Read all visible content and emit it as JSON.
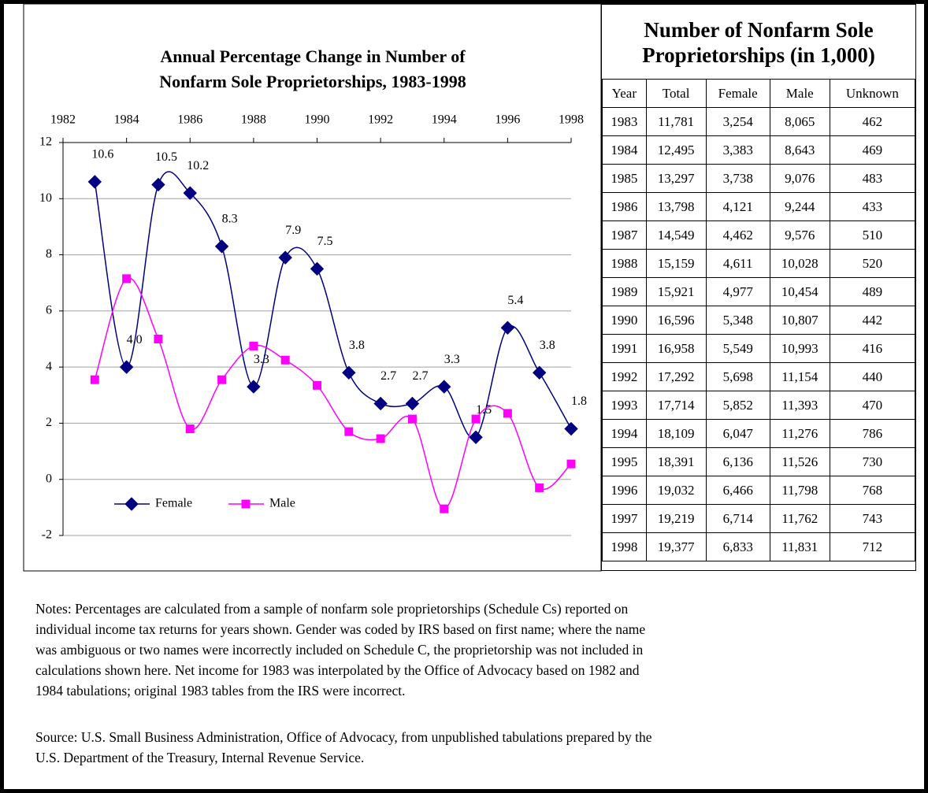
{
  "chart_data": {
    "type": "line",
    "title": [
      "Annual Percentage Change in Number of",
      "Nonfarm Sole Proprietorships, 1983-1998"
    ],
    "x": [
      1983,
      1984,
      1985,
      1986,
      1987,
      1988,
      1989,
      1990,
      1991,
      1992,
      1993,
      1994,
      1995,
      1996,
      1997,
      1998
    ],
    "series": [
      {
        "name": "Female",
        "color": "#000080",
        "marker": "diamond",
        "values": [
          10.6,
          4.0,
          10.5,
          10.2,
          8.3,
          3.3,
          7.9,
          7.5,
          3.8,
          2.7,
          2.7,
          3.3,
          1.5,
          5.4,
          3.8,
          1.8
        ],
        "value_labels": [
          "10.6",
          "4.0",
          "10.5",
          "10.2",
          "8.3",
          "3.3",
          "7.9",
          "7.5",
          "3.8",
          "2.7",
          "2.7",
          "3.3",
          "1.5",
          "5.4",
          "3.8",
          "1.8"
        ]
      },
      {
        "name": "Male",
        "color": "#ff00ff",
        "marker": "square",
        "values": [
          3.55,
          7.15,
          5.0,
          1.8,
          3.55,
          4.75,
          4.25,
          3.35,
          1.7,
          1.45,
          2.15,
          -1.05,
          2.15,
          2.35,
          -0.3,
          0.55
        ]
      }
    ],
    "xlim": [
      1982,
      1998
    ],
    "xticks": [
      1982,
      1984,
      1986,
      1988,
      1990,
      1992,
      1994,
      1996,
      1998
    ],
    "ylim": [
      -2,
      12
    ],
    "yticks": [
      -2,
      0,
      2,
      4,
      6,
      8,
      10,
      12
    ],
    "grid": true,
    "legend": "bottom-left"
  },
  "table": {
    "title": [
      "Number of Nonfarm Sole",
      "Proprietorships (in 1,000)"
    ],
    "header": [
      "Year",
      "Total",
      "Female",
      "Male",
      "Unknown"
    ],
    "rows": [
      [
        "1983",
        "11,781",
        "3,254",
        "8,065",
        "462"
      ],
      [
        "1984",
        "12,495",
        "3,383",
        "8,643",
        "469"
      ],
      [
        "1985",
        "13,297",
        "3,738",
        "9,076",
        "483"
      ],
      [
        "1986",
        "13,798",
        "4,121",
        "9,244",
        "433"
      ],
      [
        "1987",
        "14,549",
        "4,462",
        "9,576",
        "510"
      ],
      [
        "1988",
        "15,159",
        "4,611",
        "10,028",
        "520"
      ],
      [
        "1989",
        "15,921",
        "4,977",
        "10,454",
        "489"
      ],
      [
        "1990",
        "16,596",
        "5,348",
        "10,807",
        "442"
      ],
      [
        "1991",
        "16,958",
        "5,549",
        "10,993",
        "416"
      ],
      [
        "1992",
        "17,292",
        "5,698",
        "11,154",
        "440"
      ],
      [
        "1993",
        "17,714",
        "5,852",
        "11,393",
        "470"
      ],
      [
        "1994",
        "18,109",
        "6,047",
        "11,276",
        "786"
      ],
      [
        "1995",
        "18,391",
        "6,136",
        "11,526",
        "730"
      ],
      [
        "1996",
        "19,032",
        "6,466",
        "11,798",
        "768"
      ],
      [
        "1997",
        "19,219",
        "6,714",
        "11,762",
        "743"
      ],
      [
        "1998",
        "19,377",
        "6,833",
        "11,831",
        "712"
      ]
    ]
  },
  "notes": [
    "Notes: Percentages are calculated from a sample of nonfarm sole proprietorships (Schedule Cs) reported on",
    "individual income tax returns for years shown. Gender was coded by IRS based on first name; where the name",
    "was ambiguous or two names were incorrectly included on Schedule C, the proprietorship was not included in",
    "calculations shown here. Net income for 1983 was interpolated by the Office of Advocacy based on 1982 and",
    "1984 tabulations; original 1983 tables from the IRS were incorrect."
  ],
  "source": [
    "Source: U.S. Small Business Administration, Office of Advocacy, from unpublished tabulations prepared by the",
    "U.S. Department of the Treasury, Internal Revenue Service."
  ]
}
